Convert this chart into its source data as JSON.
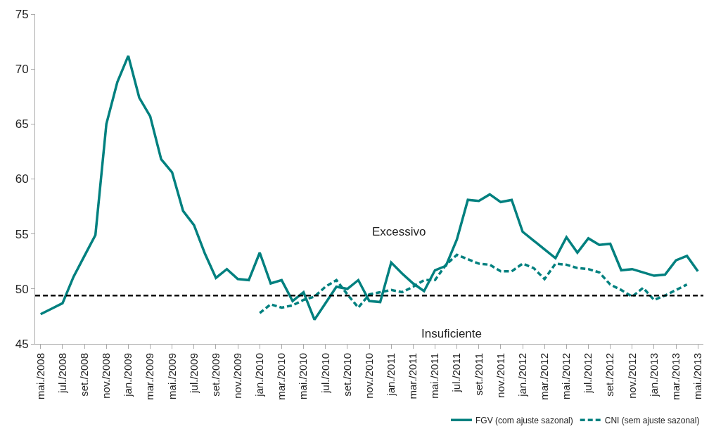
{
  "chart_data": {
    "type": "line",
    "categories": [
      "mai./2008",
      null,
      "jul./2008",
      null,
      "set./2008",
      null,
      "nov./2008",
      null,
      "jan./2009",
      null,
      "mar./2009",
      null,
      "mai./2009",
      null,
      "jul./2009",
      null,
      "set./2009",
      null,
      "nov./2009",
      null,
      "jan./2010",
      null,
      "mar./2010",
      null,
      "mai./2010",
      null,
      "jul./2010",
      null,
      "set./2010",
      null,
      "nov./2010",
      null,
      "jan./2011",
      null,
      "mar./2011",
      null,
      "mai./2011",
      null,
      "jul./2011",
      null,
      "set./2011",
      null,
      "nov./2011",
      null,
      "jan./2012",
      null,
      "mar./2012",
      null,
      "mai./2012",
      null,
      "jul./2012",
      null,
      "set./2012",
      null,
      "nov./2012",
      null,
      "jan./2013",
      null,
      "mar./2013",
      null,
      "mai./2013"
    ],
    "series": [
      {
        "name": "FGV (com ajuste sazonal)",
        "color": "#00807f",
        "line_style": "solid",
        "values": [
          47.7,
          48.2,
          48.7,
          51.1,
          53.0,
          54.9,
          65.0,
          68.8,
          71.2,
          67.4,
          65.7,
          61.8,
          60.6,
          57.1,
          55.8,
          53.2,
          51.0,
          51.8,
          50.9,
          50.8,
          53.3,
          50.5,
          50.8,
          48.9,
          49.7,
          47.2,
          48.7,
          50.2,
          50.0,
          50.8,
          48.9,
          48.8,
          52.4,
          51.4,
          50.5,
          49.8,
          51.7,
          52.1,
          54.5,
          58.1,
          58.0,
          58.6,
          57.9,
          58.1,
          55.2,
          54.4,
          53.6,
          52.8,
          54.7,
          53.3,
          54.6,
          54.0,
          54.1,
          51.7,
          51.8,
          51.5,
          51.2,
          51.3,
          52.6,
          53.0,
          51.6
        ]
      },
      {
        "name": "CNI (sem ajuste sazonal)",
        "color": "#00807f",
        "line_style": "dashed",
        "values": [
          null,
          null,
          null,
          null,
          null,
          null,
          null,
          null,
          null,
          null,
          null,
          null,
          null,
          null,
          null,
          null,
          null,
          null,
          null,
          null,
          47.8,
          48.6,
          48.3,
          48.5,
          49.0,
          49.3,
          50.2,
          50.8,
          49.5,
          48.3,
          49.5,
          49.7,
          49.9,
          49.7,
          50.2,
          50.8,
          50.8,
          52.2,
          53.1,
          52.7,
          52.3,
          52.2,
          51.6,
          51.6,
          52.3,
          51.9,
          50.9,
          52.3,
          52.2,
          51.9,
          51.8,
          51.5,
          50.4,
          49.9,
          49.3,
          50.1,
          49.0,
          49.4,
          49.9,
          50.4,
          null
        ]
      }
    ],
    "ref_lines": [
      {
        "axis": "y",
        "value": 49.4,
        "color": "#000000",
        "line_style": "dashed"
      }
    ],
    "annotations": [
      "Excessivo",
      "Insuficiente"
    ],
    "ylim": [
      45,
      75
    ],
    "yticks": [
      45,
      50,
      55,
      60,
      65,
      70,
      75
    ],
    "legend": "bottom"
  }
}
